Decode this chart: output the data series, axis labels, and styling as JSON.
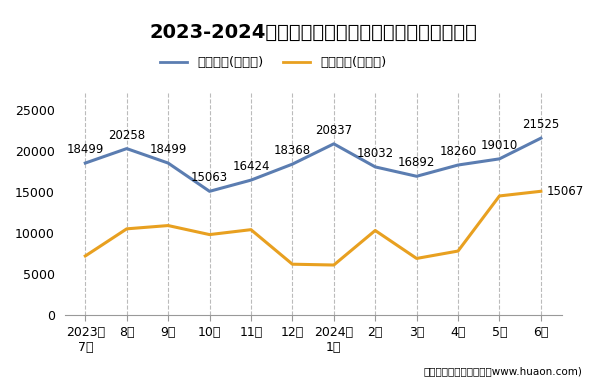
{
  "title": "2023-2024年阳江市商品收发货人所在地进、出口额",
  "x_labels": [
    "2023年\n7月",
    "8月",
    "9月",
    "10月",
    "11月",
    "12月",
    "2024年\n1月",
    "2月",
    "3月",
    "4月",
    "5月",
    "6月"
  ],
  "export_values": [
    18499,
    20258,
    18499,
    15063,
    16424,
    18368,
    20837,
    18032,
    16892,
    18260,
    19010,
    21525
  ],
  "import_values": [
    7200,
    10500,
    10900,
    9800,
    10400,
    6200,
    6100,
    10300,
    6900,
    7800,
    14500,
    15067
  ],
  "export_label": "出口总额(万美元)",
  "import_label": "进口总额(万美元)",
  "export_color": "#5B7DB1",
  "import_color": "#E8A020",
  "ylim": [
    0,
    27000
  ],
  "yticks": [
    0,
    5000,
    10000,
    15000,
    20000,
    25000
  ],
  "footer": "制图：华经产业研究院（www.huaon.com)",
  "bg_color": "#FFFFFF",
  "title_fontsize": 14,
  "annot_fontsize": 8.5,
  "tick_fontsize": 9,
  "legend_fontsize": 9.5
}
